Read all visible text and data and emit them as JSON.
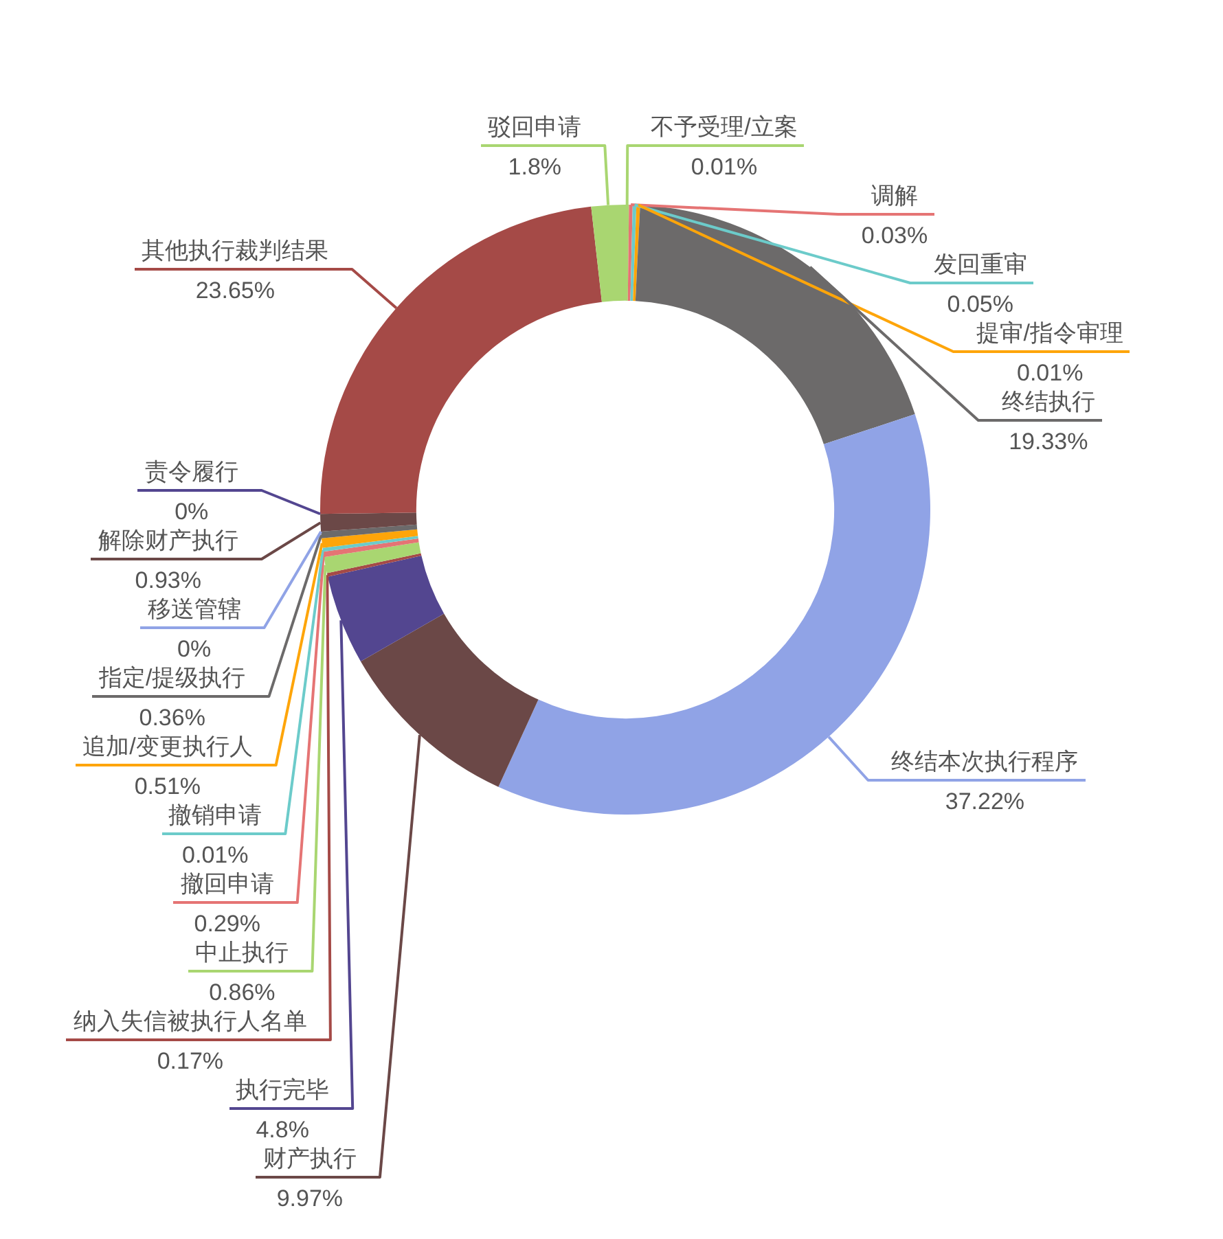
{
  "chart_data": {
    "type": "donut",
    "categories": [
      "不予受理/立案",
      "调解",
      "发回重审",
      "提审/指令审理",
      "终结执行",
      "终结本次执行程序",
      "财产执行",
      "执行完毕",
      "纳入失信被执行人名单",
      "中止执行",
      "撤回申请",
      "撤销申请",
      "追加/变更执行人",
      "指定/提级执行",
      "移送管辖",
      "解除财产执行",
      "责令履行",
      "其他执行裁判结果",
      "驳回申请"
    ],
    "values": [
      0.01,
      0.03,
      0.05,
      0.01,
      19.33,
      37.22,
      9.97,
      4.8,
      0.17,
      0.86,
      0.29,
      0.01,
      0.51,
      0.36,
      0,
      0.93,
      0,
      23.65,
      1.8
    ],
    "value_labels": [
      "0.01%",
      "0.03%",
      "0.05%",
      "0.01%",
      "19.33%",
      "37.22%",
      "9.97%",
      "4.8%",
      "0.17%",
      "0.86%",
      "0.29%",
      "0.01%",
      "0.51%",
      "0.36%",
      "0%",
      "0.93%",
      "0%",
      "23.65%",
      "1.8%"
    ],
    "colors": [
      "#a9d671",
      "#e57474",
      "#6ccbca",
      "#fea50a",
      "#6c6a6a",
      "#90a3e6",
      "#6b4847",
      "#534690",
      "#a54a47",
      "#a9d671",
      "#e57474",
      "#6ccbca",
      "#fea50a",
      "#6c6a6a",
      "#90a3e6",
      "#6b4847",
      "#534690",
      "#a54a47",
      "#a9d671"
    ]
  }
}
